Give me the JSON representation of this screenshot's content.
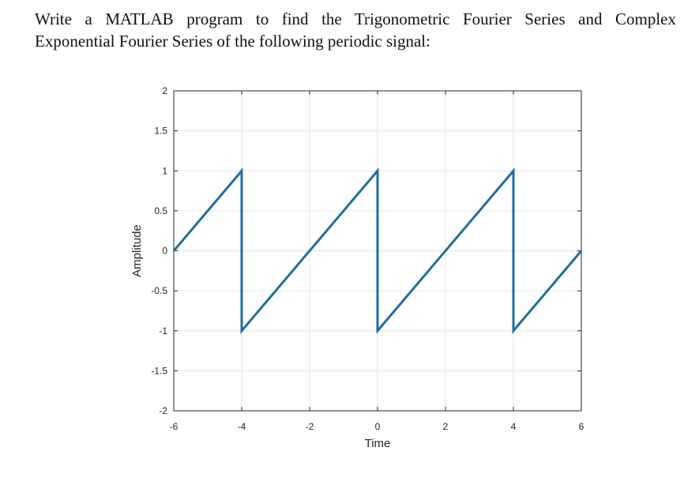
{
  "question": {
    "line1": "Write a MATLAB program to find the Trigonometric Fourier Series and Complex",
    "line2": "Exponential Fourier Series of the following periodic signal:"
  },
  "chart_data": {
    "type": "line",
    "xlabel": "Time",
    "ylabel": "Amplitude",
    "xlim": [
      -6,
      6
    ],
    "ylim": [
      -2,
      2
    ],
    "xticks": [
      -6,
      -4,
      -2,
      0,
      2,
      4,
      6
    ],
    "yticks": [
      2,
      1.5,
      1,
      0.5,
      0,
      -0.5,
      -1,
      -1.5,
      -2
    ],
    "xtick_labels": [
      "-6",
      "-4",
      "-2",
      "0",
      "2",
      "4",
      "6"
    ],
    "ytick_labels": [
      "2",
      "1.5",
      "1",
      "0.5",
      "0",
      "-0.5",
      "-1",
      "-1.5",
      "-2"
    ],
    "grid": true,
    "series": [
      {
        "color": "#1f6f9e",
        "x": [
          -6,
          -4,
          -4,
          0,
          0,
          4,
          4,
          6
        ],
        "y": [
          0,
          1,
          -1,
          1,
          -1,
          1,
          -1,
          0
        ]
      }
    ]
  }
}
